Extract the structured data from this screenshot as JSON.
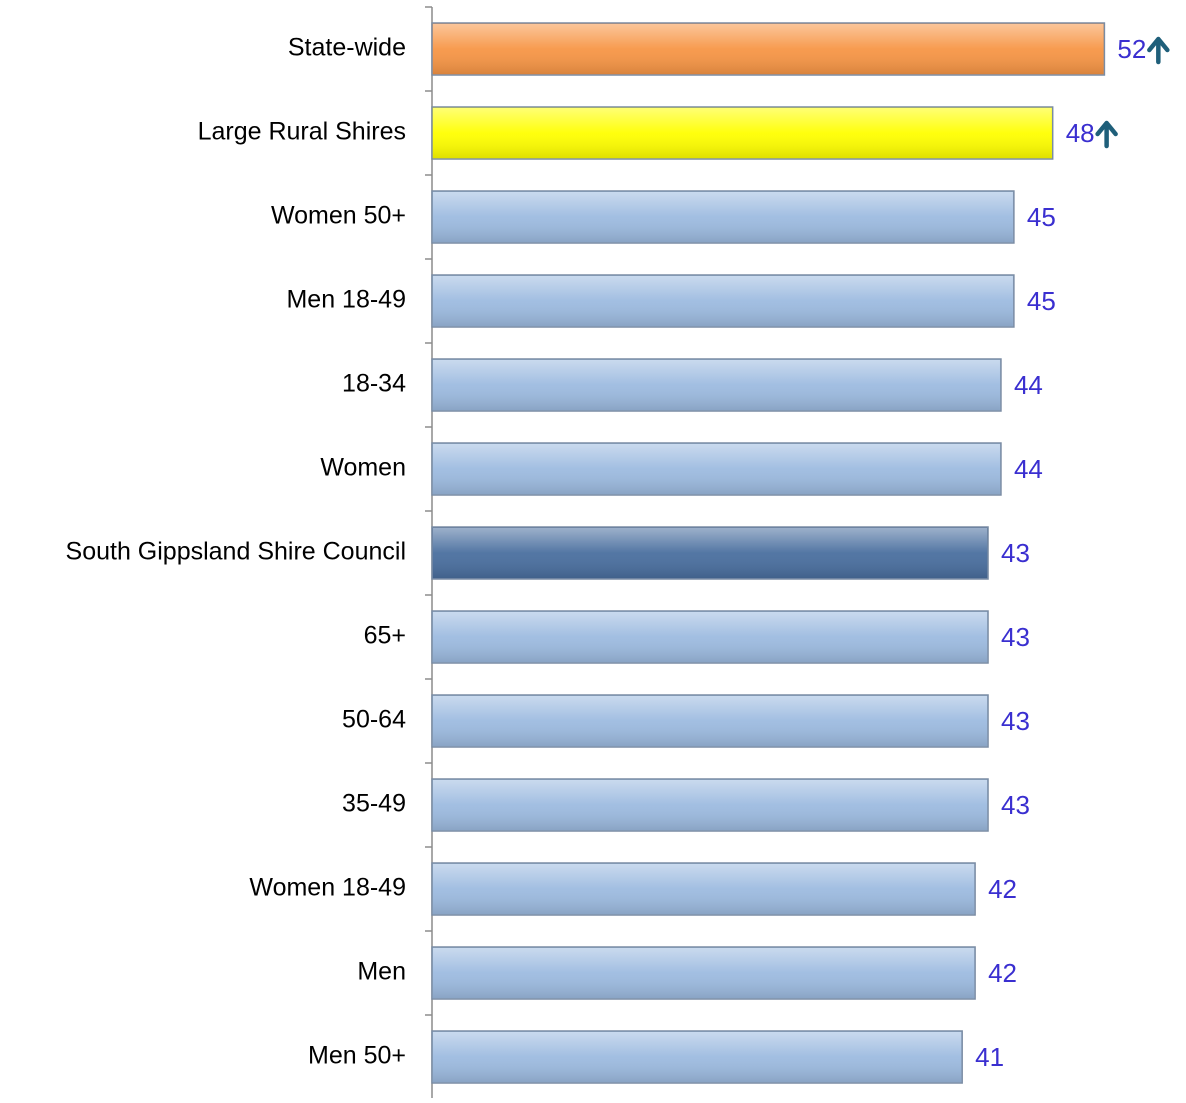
{
  "chart_data": {
    "type": "barh",
    "categories": [
      "State-wide",
      "Large Rural Shires",
      "Women 50+",
      "Men 18-49",
      "18-34",
      "Women",
      "South Gippsland Shire Council",
      "65+",
      "50-64",
      "35-49",
      "Women 18-49",
      "Men",
      "Men 50+"
    ],
    "values": [
      52,
      48,
      45,
      45,
      44,
      44,
      43,
      43,
      43,
      43,
      42,
      42,
      41
    ],
    "colors": [
      "#f79646",
      "#ffff00",
      "#9dbbe0",
      "#9dbbe0",
      "#9dbbe0",
      "#9dbbe0",
      "#4a6f9f",
      "#9dbbe0",
      "#9dbbe0",
      "#9dbbe0",
      "#9dbbe0",
      "#9dbbe0",
      "#9dbbe0"
    ],
    "up_arrows": [
      true,
      true,
      false,
      false,
      false,
      false,
      false,
      false,
      false,
      false,
      false,
      false,
      false
    ],
    "arrow_color": "#1f5f7a",
    "label_color": "#3a2fd0",
    "xlim": [
      0,
      58
    ]
  }
}
